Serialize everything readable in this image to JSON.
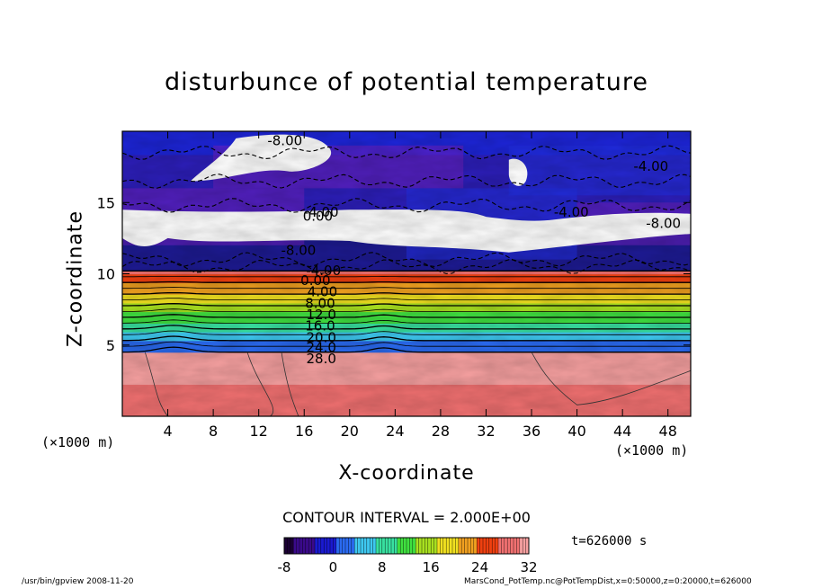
{
  "chart_data": {
    "type": "heatmap",
    "title": "disturbunce of potential temperature",
    "xlabel": "X-coordinate",
    "ylabel": "Z-coordinate",
    "x_unit_label_left": "(×1000 m)",
    "x_unit_label_right": "(×1000 m)",
    "xlim": [
      0,
      50
    ],
    "ylim": [
      0,
      20
    ],
    "x_ticks": [
      4,
      8,
      12,
      16,
      20,
      24,
      28,
      32,
      36,
      40,
      44,
      48
    ],
    "y_ticks": [
      5,
      10,
      15
    ],
    "contour_interval_text": "CONTOUR INTERVAL = 2.000E+00",
    "contour_labels": [
      {
        "x": 14.3,
        "z": 19.3,
        "text": "-8.00"
      },
      {
        "x": 15.5,
        "z": 11.6,
        "text": "-8.00"
      },
      {
        "x": 17.5,
        "z": 14.3,
        "text": "-4.00"
      },
      {
        "x": 17.2,
        "z": 14.0,
        "text": "0.00"
      },
      {
        "x": 39.5,
        "z": 14.3,
        "text": "-4.00"
      },
      {
        "x": 46.5,
        "z": 17.5,
        "text": "-4.00"
      },
      {
        "x": 47.6,
        "z": 13.5,
        "text": "-8.00"
      },
      {
        "x": 17.7,
        "z": 10.2,
        "text": "-4.00"
      },
      {
        "x": 17.0,
        "z": 9.5,
        "text": "0.00"
      },
      {
        "x": 17.6,
        "z": 8.7,
        "text": "4.00"
      },
      {
        "x": 17.4,
        "z": 7.9,
        "text": "8.00"
      },
      {
        "x": 17.5,
        "z": 7.1,
        "text": "12.0"
      },
      {
        "x": 17.4,
        "z": 6.3,
        "text": "16.0"
      },
      {
        "x": 17.5,
        "z": 5.5,
        "text": "20.0"
      },
      {
        "x": 17.5,
        "z": 4.8,
        "text": "24.0"
      },
      {
        "x": 17.5,
        "z": 4.0,
        "text": "28.0"
      }
    ],
    "colorbar": {
      "range": [
        -8,
        32
      ],
      "tick_labels": [
        "-8",
        "0",
        "8",
        "16",
        "24",
        "32"
      ],
      "tick_values": [
        -8,
        0,
        8,
        16,
        24,
        32
      ]
    },
    "colormap": [
      "#1a0033",
      "#3a0a8a",
      "#1a1ad0",
      "#2a6af0",
      "#3ec8f0",
      "#38e0a0",
      "#40e040",
      "#a8e020",
      "#f0e020",
      "#f0a020",
      "#f04010",
      "#f07070",
      "#f6a0a0"
    ],
    "layers": [
      {
        "z_range": [
          0,
          4.5
        ],
        "value_range": [
          28,
          32
        ]
      },
      {
        "z_range": [
          4.5,
          10.2
        ],
        "value_range": [
          0,
          28
        ]
      },
      {
        "z_range": [
          10.2,
          20
        ],
        "value_range": [
          -8,
          -2
        ]
      }
    ],
    "time_label": "t=626000 s",
    "footer_left": "/usr/bin/gpview   2008-11-20",
    "footer_right": "MarsCond_PotTemp.nc@PotTempDist,x=0:50000,z=0:20000,t=626000"
  }
}
